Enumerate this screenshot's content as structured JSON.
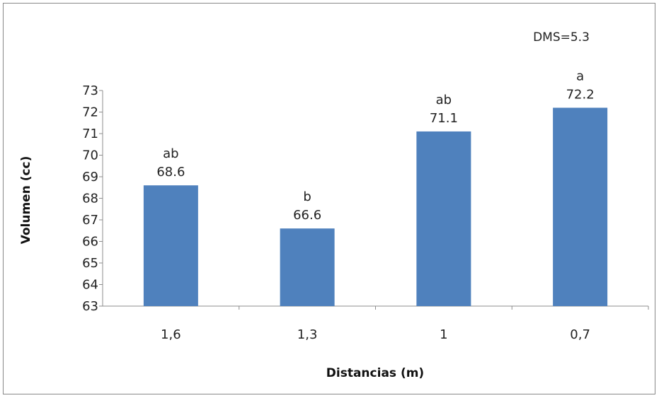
{
  "chart_data": {
    "type": "bar",
    "categories": [
      "1,6",
      "1,3",
      "1",
      "0,7"
    ],
    "values": [
      68.6,
      66.6,
      71.1,
      72.2
    ],
    "value_labels": [
      "68.6",
      "66.6",
      "71.1",
      "72.2"
    ],
    "significance_letters": [
      "ab",
      "b",
      "ab",
      "a"
    ],
    "xlabel": "Distancias (m)",
    "ylabel": "Volumen (cc)",
    "ylim": [
      63,
      73
    ],
    "yticks": [
      63,
      64,
      65,
      66,
      67,
      68,
      69,
      70,
      71,
      72,
      73
    ],
    "annotation": "DMS=5.3",
    "bar_color": "#4f81bd",
    "grid": false,
    "legend": "none"
  }
}
